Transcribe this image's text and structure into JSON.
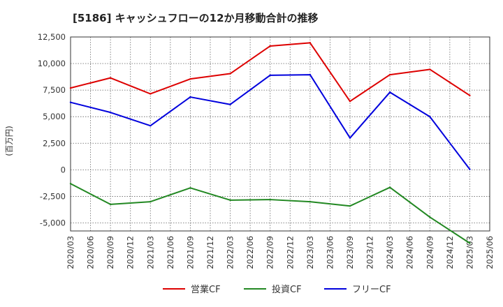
{
  "chart_data": {
    "type": "line",
    "title": "[5186]  キャッシュフローの12か月移動合計の推移",
    "ylabel": "(百万円)",
    "xlabel": "",
    "ylim": [
      -5750,
      12500
    ],
    "grid": true,
    "y_ticks": [
      12500,
      10000,
      7500,
      5000,
      2500,
      0,
      -2500,
      -5000
    ],
    "y_tick_labels": [
      "12,500",
      "10,000",
      "7,500",
      "5,000",
      "2,500",
      "0",
      "-2,500",
      "-5,000"
    ],
    "x_ticks": [
      "2020/03",
      "2020/06",
      "2020/09",
      "2020/12",
      "2021/03",
      "2021/06",
      "2021/09",
      "2021/12",
      "2022/03",
      "2022/06",
      "2022/09",
      "2022/12",
      "2023/03",
      "2023/06",
      "2023/09",
      "2023/12",
      "2024/03",
      "2024/06",
      "2024/09",
      "2024/12",
      "2025/03",
      "2025/06"
    ],
    "legend_position": "bottom",
    "series": [
      {
        "name": "営業CF",
        "color": "#dd0000",
        "x": [
          "2020/03",
          "2020/09",
          "2021/03",
          "2021/09",
          "2022/03",
          "2022/09",
          "2023/03",
          "2023/09",
          "2024/03",
          "2024/09",
          "2025/03"
        ],
        "values": [
          7700,
          8650,
          7150,
          8550,
          9050,
          11650,
          11950,
          6450,
          8950,
          9450,
          7000
        ]
      },
      {
        "name": "投資CF",
        "color": "#228822",
        "x": [
          "2020/03",
          "2020/09",
          "2021/03",
          "2021/09",
          "2022/03",
          "2022/09",
          "2023/03",
          "2023/09",
          "2024/03",
          "2024/09",
          "2025/03"
        ],
        "values": [
          -1300,
          -3250,
          -3000,
          -1700,
          -2850,
          -2800,
          -3000,
          -3400,
          -1650,
          -4450,
          -6900
        ]
      },
      {
        "name": "フリーCF",
        "color": "#0000dd",
        "x": [
          "2020/03",
          "2020/09",
          "2021/03",
          "2021/09",
          "2022/03",
          "2022/09",
          "2023/03",
          "2023/09",
          "2024/03",
          "2024/09",
          "2025/03"
        ],
        "values": [
          6350,
          5400,
          4150,
          6850,
          6150,
          8900,
          8950,
          3000,
          7300,
          5000,
          50
        ]
      }
    ]
  }
}
